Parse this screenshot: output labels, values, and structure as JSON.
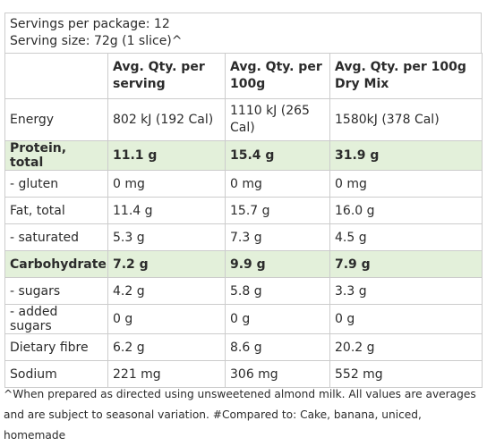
{
  "header": {
    "servings": "Servings per package: 12",
    "serving_size": "Serving size: 72g (1 slice)^"
  },
  "table": {
    "columns": [
      "",
      "Avg. Qty. per serving",
      "Avg. Qty. per 100g",
      "Avg. Qty. per 100g Dry Mix"
    ],
    "rows": [
      [
        "Energy",
        "802 kJ (192 Cal)",
        "1110 kJ (265 Cal)",
        "1580kJ (378 Cal)"
      ],
      [
        "Protein, total",
        "11.1 g",
        "15.4 g",
        "31.9 g"
      ],
      [
        "- gluten",
        "0 mg",
        "0 mg",
        "0 mg"
      ],
      [
        "Fat, total",
        "11.4 g",
        "15.7 g",
        "16.0 g"
      ],
      [
        "- saturated",
        "5.3 g",
        "7.3 g",
        "4.5 g"
      ],
      [
        "Carbohydrate",
        "7.2 g",
        "9.9 g",
        "7.9 g"
      ],
      [
        "- sugars",
        "4.2 g",
        "5.8 g",
        "3.3 g"
      ],
      [
        "- added sugars",
        "0 g",
        "0 g",
        "0 g"
      ],
      [
        "Dietary fibre",
        "6.2 g",
        "8.6 g",
        "20.2 g"
      ],
      [
        "Sodium",
        "221 mg",
        "306 mg",
        "552 mg"
      ]
    ]
  },
  "footnote": "^When prepared as directed using unsweetened almond milk. All values are averages and are subject to seasonal variation. #Compared to: Cake, banana, uniced, homemade"
}
